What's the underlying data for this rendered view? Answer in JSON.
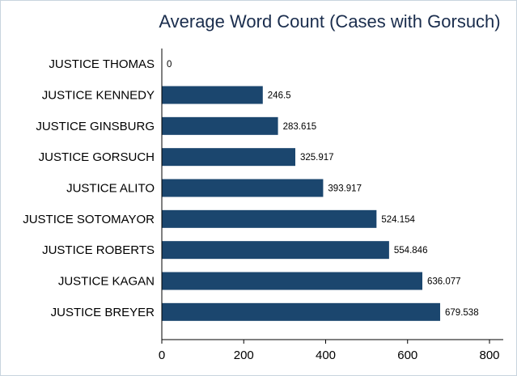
{
  "chart_data": {
    "type": "bar",
    "orientation": "horizontal",
    "title": "Average Word Count (Cases with Gorsuch)",
    "xlabel": "",
    "ylabel": "",
    "categories": [
      "JUSTICE THOMAS",
      "JUSTICE KENNEDY",
      "JUSTICE GINSBURG",
      "JUSTICE GORSUCH",
      "JUSTICE ALITO",
      "JUSTICE SOTOMAYOR",
      "JUSTICE ROBERTS",
      "JUSTICE KAGAN",
      "JUSTICE BREYER"
    ],
    "values": [
      0,
      246.5,
      283.615,
      325.917,
      393.917,
      524.154,
      554.846,
      636.077,
      679.538
    ],
    "value_labels": [
      "0",
      "246.5",
      "283.615",
      "325.917",
      "393.917",
      "524.154",
      "554.846",
      "636.077",
      "679.538"
    ],
    "xlim": [
      0,
      800
    ],
    "xticks": [
      0,
      200,
      400,
      600,
      800
    ],
    "grid": false,
    "bar_color": "#1b466e"
  }
}
